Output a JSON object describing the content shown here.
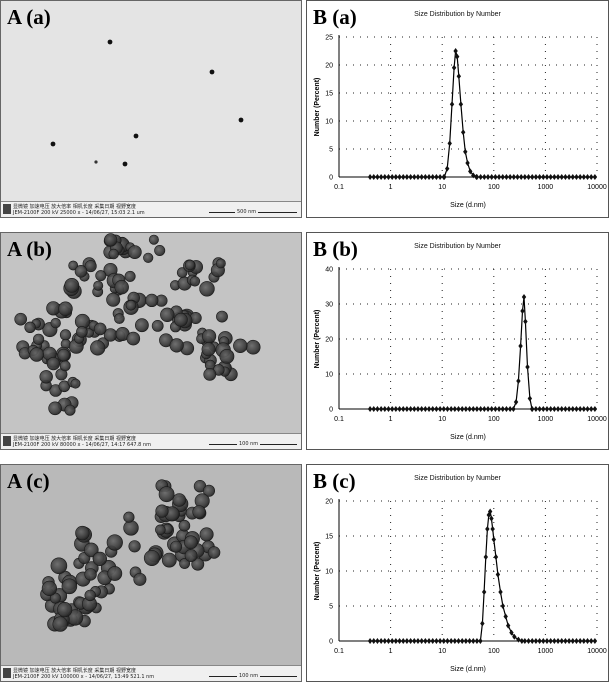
{
  "panels": {
    "a": {
      "tem_label": "A (a)",
      "dls_label": "B (a)",
      "footer_line1": "显微镜  加速电压 放大倍率 相机长度     采集日期    视野宽度",
      "footer_line2": "JEM-2100F  200 kV  25000 x    -    14/06/27, 15:03 2.1 um",
      "scale_label": "500 nm"
    },
    "b": {
      "tem_label": "A (b)",
      "dls_label": "B (b)",
      "footer_line1": "显微镜  加速电压 放大倍率 相机长度     采集日期    视野宽度",
      "footer_line2": "JEM-2100F  200 kV  80000 x    -    14/06/27, 14:17 647.8 nm",
      "scale_label": "100 nm"
    },
    "c": {
      "tem_label": "A (c)",
      "dls_label": "B (c)",
      "footer_line1": "显微镜  加速电压 放大倍率 相机长度     采集日期    视野宽度",
      "footer_line2": "JEM-2100F  200 kV  100000 x    -    14/06/27, 13:49 521.1 nm",
      "scale_label": "100 nm"
    }
  },
  "chart_data": [
    {
      "type": "line",
      "title": "Size Distribution by Number",
      "xlabel": "Size (d.nm)",
      "ylabel": "Number (Percent)",
      "xscale": "log",
      "xlim": [
        0.1,
        10000
      ],
      "ylim": [
        0,
        25
      ],
      "xticks": [
        "0.1",
        "1",
        "10",
        "100",
        "1000",
        "10000"
      ],
      "yticks": [
        "0",
        "5",
        "10",
        "15",
        "20",
        "25"
      ],
      "grid": true,
      "series": [
        {
          "x": [
            11,
            12.5,
            14,
            15.5,
            17,
            18.2,
            19.5,
            21,
            23,
            25.5,
            28,
            31,
            35,
            40,
            46
          ],
          "y": [
            0,
            1.5,
            6,
            13,
            19.5,
            22.5,
            21.5,
            18,
            13,
            8,
            4.5,
            2.5,
            1,
            0.3,
            0
          ]
        }
      ]
    },
    {
      "type": "line",
      "title": "Size Distribution by Number",
      "xlabel": "Size (d.nm)",
      "ylabel": "Number (Percent)",
      "xscale": "log",
      "xlim": [
        0.1,
        10000
      ],
      "ylim": [
        0,
        40
      ],
      "xticks": [
        "0.1",
        "1",
        "10",
        "100",
        "1000",
        "10000"
      ],
      "yticks": [
        "0",
        "10",
        "20",
        "30",
        "40"
      ],
      "grid": true,
      "series": [
        {
          "x": [
            240,
            270,
            300,
            330,
            360,
            385,
            410,
            450,
            500,
            550
          ],
          "y": [
            0,
            2,
            8,
            18,
            28,
            32,
            25,
            12,
            3,
            0
          ]
        }
      ]
    },
    {
      "type": "line",
      "title": "Size Distribution by Number",
      "xlabel": "Size (d.nm)",
      "ylabel": "Number (Percent)",
      "xscale": "log",
      "xlim": [
        0.1,
        10000
      ],
      "ylim": [
        0,
        20
      ],
      "xticks": [
        "0.1",
        "1",
        "10",
        "100",
        "1000",
        "10000"
      ],
      "yticks": [
        "0",
        "5",
        "10",
        "15",
        "20"
      ],
      "grid": true,
      "series": [
        {
          "x": [
            55,
            60,
            65,
            70,
            75,
            80,
            85,
            90,
            95,
            100,
            110,
            120,
            135,
            150,
            170,
            190,
            220,
            250,
            300,
            350
          ],
          "y": [
            0,
            2.5,
            7,
            12,
            16,
            18,
            18.5,
            17.5,
            16,
            14.5,
            12,
            9.5,
            7,
            5,
            3.5,
            2.2,
            1.2,
            0.6,
            0.2,
            0
          ]
        }
      ]
    }
  ]
}
